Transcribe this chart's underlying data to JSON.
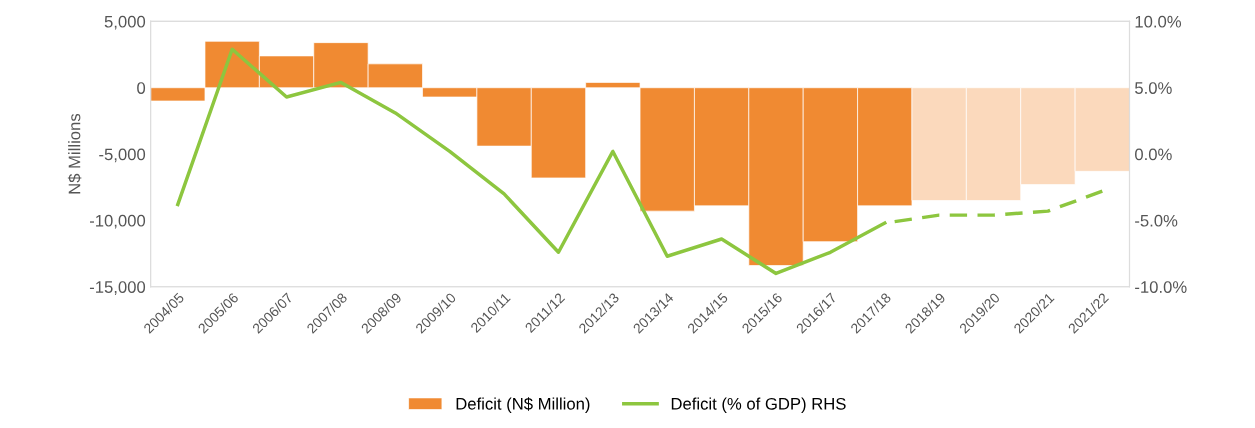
{
  "chart_data": {
    "type": "bar",
    "ylabel": "N$ Millions",
    "categories": [
      "2004/05",
      "2005/06",
      "2006/07",
      "2007/08",
      "2008/09",
      "2009/10",
      "2010/11",
      "2011/12",
      "2012/13",
      "2013/14",
      "2014/15",
      "2015/16",
      "2016/17",
      "2017/18",
      "2018/19",
      "2019/20",
      "2020/21",
      "2021/22"
    ],
    "series": [
      {
        "name": "Deficit (N$ Million)",
        "color": "#f08a32",
        "values": [
          -1000,
          3500,
          2400,
          3400,
          1800,
          -700,
          -4400,
          -6800,
          400,
          -9300,
          -8900,
          -13400,
          -11600,
          -8900,
          null,
          null,
          null,
          null
        ]
      },
      {
        "color": "#fbd9bc",
        "values": [
          null,
          null,
          null,
          null,
          null,
          null,
          null,
          null,
          null,
          null,
          null,
          null,
          null,
          null,
          -8500,
          -8500,
          -7300,
          -6300
        ]
      },
      {
        "name": "Deficit (% of GDP) RHS",
        "type": "line",
        "axis": "y2",
        "color": "#8dc63f",
        "line_style": "solid",
        "values": [
          -3.8,
          7.9,
          4.3,
          5.4,
          3.1,
          0.2,
          -3.0,
          -7.4,
          0.2,
          -7.7,
          -6.4,
          -9.0,
          -7.4,
          -5.2,
          null,
          null,
          null,
          null
        ]
      },
      {
        "type": "line",
        "axis": "y2",
        "color": "#8dc63f",
        "line_style": "dashed",
        "values": [
          null,
          null,
          null,
          null,
          null,
          null,
          null,
          null,
          null,
          null,
          null,
          null,
          null,
          -5.2,
          -4.6,
          -4.6,
          -4.3,
          -2.8
        ]
      }
    ],
    "ylim": [
      -15000,
      5000
    ],
    "yticks": [
      {
        "value": -15000,
        "label": "-15,000"
      },
      {
        "value": -10000,
        "label": "-10,000"
      },
      {
        "value": -5000,
        "label": "-5,000"
      },
      0,
      {
        "value": 5000,
        "label": "5,000"
      }
    ],
    "y2lim": [
      -10,
      10
    ],
    "y2ticks": [
      {
        "value": -10,
        "label": "-10.0%"
      },
      {
        "value": -5,
        "label": "-5.0%"
      },
      {
        "value": 0,
        "label": "0.0%"
      },
      {
        "value": 5,
        "label": "5.0%"
      },
      {
        "value": 10,
        "label": "10.0%"
      }
    ],
    "legend": "bottom",
    "grid": false
  }
}
